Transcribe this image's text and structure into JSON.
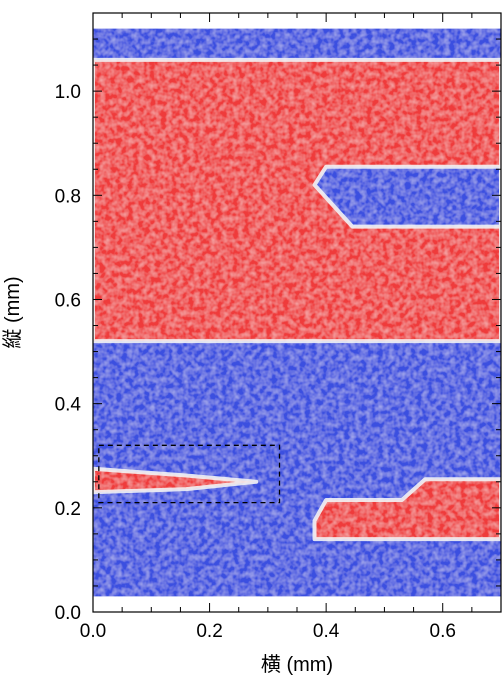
{
  "chart_data": {
    "type": "heatmap",
    "title": "",
    "xlabel": "横 (mm)",
    "ylabel": "縦 (mm)",
    "xlim": [
      0.0,
      0.7
    ],
    "ylim": [
      0.0,
      1.15
    ],
    "x_ticks": [
      "0.0",
      "0.2",
      "0.4",
      "0.6"
    ],
    "x_tick_values": [
      0.0,
      0.2,
      0.4,
      0.6
    ],
    "y_ticks": [
      "0.0",
      "0.2",
      "0.4",
      "0.6",
      "0.8",
      "1.0"
    ],
    "y_tick_values": [
      0.0,
      0.2,
      0.4,
      0.6,
      0.8,
      1.0
    ],
    "grid": false,
    "colors": {
      "domain_a": "#ef3b3b",
      "domain_b": "#3a4fe0",
      "boundary": "#f2f2f4"
    },
    "domains": [
      {
        "name": "red",
        "polygon_mm": [
          [
            0.0,
            1.06
          ],
          [
            0.7,
            1.06
          ],
          [
            0.7,
            0.52
          ],
          [
            0.0,
            0.52
          ]
        ]
      },
      {
        "name": "blue",
        "polygon_mm": [
          [
            0.4,
            0.855
          ],
          [
            0.7,
            0.855
          ],
          [
            0.7,
            0.74
          ],
          [
            0.445,
            0.74
          ],
          [
            0.38,
            0.82
          ]
        ]
      },
      {
        "name": "red",
        "polygon_mm": [
          [
            0.0,
            0.275
          ],
          [
            0.16,
            0.262
          ],
          [
            0.28,
            0.25
          ],
          [
            0.16,
            0.236
          ],
          [
            0.0,
            0.23
          ]
        ]
      },
      {
        "name": "red",
        "polygon_mm": [
          [
            0.4,
            0.215
          ],
          [
            0.53,
            0.215
          ],
          [
            0.57,
            0.255
          ],
          [
            0.7,
            0.255
          ],
          [
            0.7,
            0.14
          ],
          [
            0.38,
            0.14
          ],
          [
            0.38,
            0.175
          ]
        ]
      }
    ],
    "background_domain": "blue",
    "data_region_mm": {
      "x": [
        0.0,
        0.7
      ],
      "y": [
        0.03,
        1.12
      ]
    },
    "annotation_box_mm": {
      "x": [
        0.01,
        0.32
      ],
      "y": [
        0.21,
        0.32
      ],
      "style": "dashed"
    }
  }
}
